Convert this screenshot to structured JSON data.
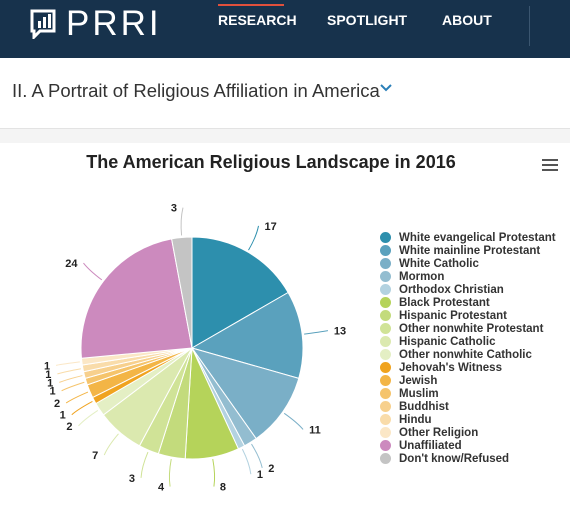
{
  "header": {
    "logo_text": "PRRI",
    "nav": [
      {
        "label": "RESEARCH",
        "active": true
      },
      {
        "label": "SPOTLIGHT",
        "active": false
      },
      {
        "label": "ABOUT",
        "active": false
      }
    ]
  },
  "section": {
    "title": "II. A Portrait of Religious Affiliation in America"
  },
  "icons": {
    "menu": "hamburger-menu-icon",
    "dropdown": "chevron-down-icon",
    "logo": "bar-chart-speech-bubble-icon"
  },
  "chart_data": {
    "type": "pie",
    "title": "The American Religious Landscape in 2016",
    "legend_position": "right",
    "slices": [
      {
        "label": "White evangelical Protestant",
        "value": 17,
        "color": "#2d8fad"
      },
      {
        "label": "White mainline Protestant",
        "value": 13,
        "color": "#5aa1bd"
      },
      {
        "label": "White Catholic",
        "value": 11,
        "color": "#7aafc7"
      },
      {
        "label": "Mormon",
        "value": 2,
        "color": "#93bdd0"
      },
      {
        "label": "Orthodox Christian",
        "value": 1,
        "color": "#b3d2e0"
      },
      {
        "label": "Black Protestant",
        "value": 8,
        "color": "#b5d35a"
      },
      {
        "label": "Hispanic Protestant",
        "value": 4,
        "color": "#c3db7c"
      },
      {
        "label": "Other nonwhite Protestant",
        "value": 3,
        "color": "#d0e397"
      },
      {
        "label": "Hispanic Catholic",
        "value": 7,
        "color": "#dbe9af"
      },
      {
        "label": "Other nonwhite Catholic",
        "value": 2,
        "color": "#e4efc4"
      },
      {
        "label": "Jehovah's Witness",
        "value": 1,
        "color": "#f0a31f"
      },
      {
        "label": "Jewish",
        "value": 2,
        "color": "#f3b546"
      },
      {
        "label": "Muslim",
        "value": 1,
        "color": "#f5c46c"
      },
      {
        "label": "Buddhist",
        "value": 1,
        "color": "#f7d08d"
      },
      {
        "label": "Hindu",
        "value": 1,
        "color": "#f9dcaa"
      },
      {
        "label": "Other Religion",
        "value": 1,
        "color": "#fbe7c6"
      },
      {
        "label": "Unaffiliated",
        "value": 24,
        "color": "#cc8abe"
      },
      {
        "label": "Don't know/Refused",
        "value": 3,
        "color": "#c4c4c4"
      }
    ]
  }
}
